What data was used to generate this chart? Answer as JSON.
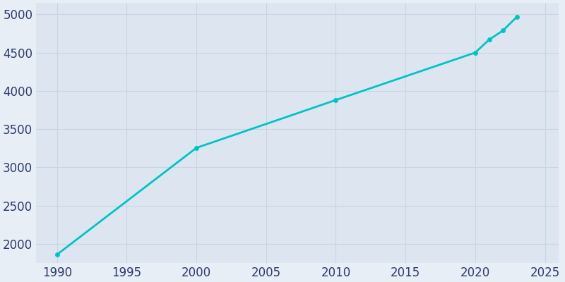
{
  "years": [
    1990,
    2000,
    2010,
    2020,
    2021,
    2022,
    2023
  ],
  "population": [
    1860,
    3255,
    3880,
    4500,
    4670,
    4790,
    4970
  ],
  "line_color": "#00C4C4",
  "marker_color": "#00C4C4",
  "fig_bg_color": "#E8EEF5",
  "plot_bg_color": "#DDE6F0",
  "tick_color": "#2B3A6B",
  "grid_color": "#C8D4E4",
  "xlim": [
    1988.5,
    2026
  ],
  "ylim": [
    1750,
    5150
  ],
  "xticks": [
    1990,
    1995,
    2000,
    2005,
    2010,
    2015,
    2020,
    2025
  ],
  "yticks": [
    2000,
    2500,
    3000,
    3500,
    4000,
    4500,
    5000
  ],
  "marker_size": 5,
  "line_width": 2.0,
  "tick_fontsize": 12
}
